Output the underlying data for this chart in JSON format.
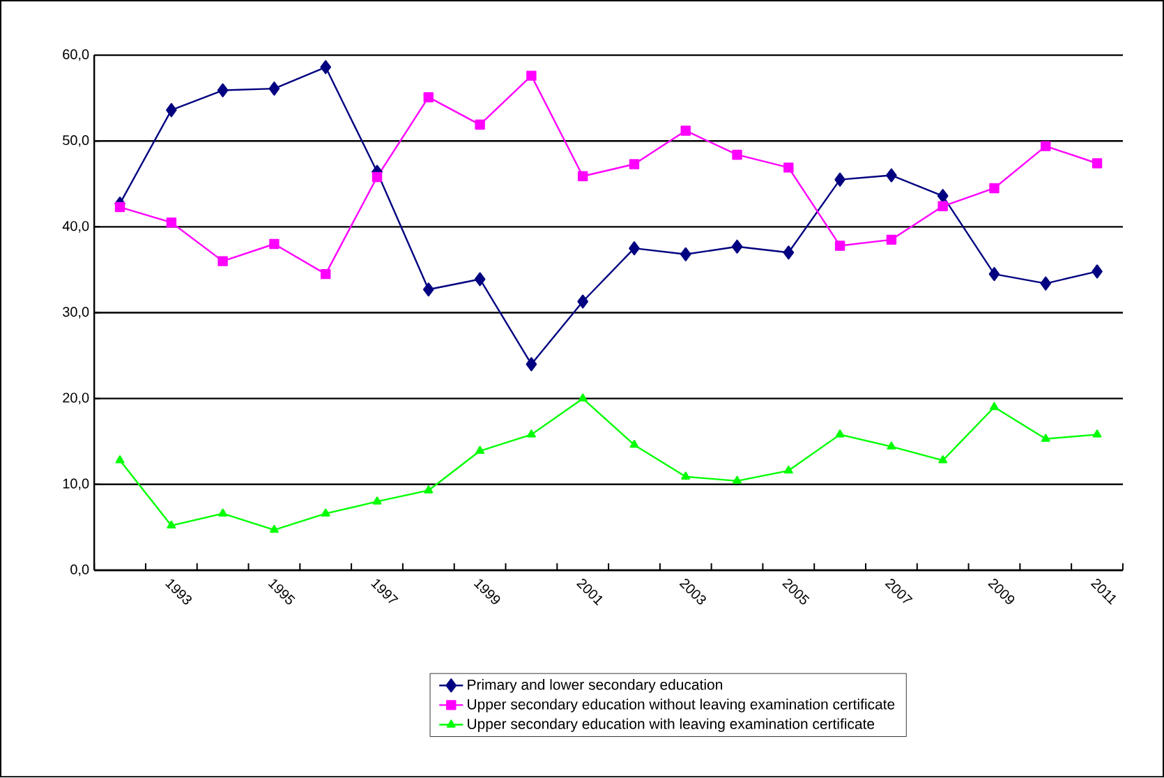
{
  "chart_data": {
    "type": "line",
    "categories": [
      null,
      "1993",
      null,
      "1995",
      null,
      "1997",
      null,
      "1999",
      null,
      "2001",
      null,
      "2003",
      null,
      "2005",
      null,
      "2007",
      null,
      "2009",
      null,
      "2011"
    ],
    "series": [
      {
        "name": "Primary and lower secondary education",
        "color": "#000080",
        "marker": "diamond",
        "values": [
          42.7,
          53.6,
          55.9,
          56.1,
          58.6,
          46.4,
          32.7,
          33.9,
          24.0,
          31.3,
          37.5,
          36.8,
          37.7,
          37.0,
          45.5,
          46.0,
          43.6,
          34.5,
          33.4,
          34.8
        ]
      },
      {
        "name": "Upper secondary education without leaving examination certificate",
        "color": "#ff00ff",
        "marker": "square",
        "values": [
          42.3,
          40.5,
          36.0,
          38.0,
          34.5,
          45.8,
          55.1,
          51.9,
          57.6,
          45.9,
          47.3,
          51.2,
          48.4,
          46.9,
          37.8,
          38.5,
          42.4,
          44.5,
          49.4,
          47.4
        ]
      },
      {
        "name": "Upper secondary education with leaving examination certificate",
        "color": "#00ff00",
        "marker": "triangle",
        "values": [
          12.8,
          5.2,
          6.6,
          4.7,
          6.6,
          8.0,
          9.3,
          13.9,
          15.8,
          20.0,
          14.6,
          10.9,
          10.4,
          11.6,
          15.8,
          14.4,
          12.8,
          19.0,
          15.3,
          15.8
        ]
      }
    ],
    "ylim": [
      0,
      60
    ],
    "yticks": [
      {
        "value": 0,
        "label": "0,0"
      },
      {
        "value": 10,
        "label": "10,0"
      },
      {
        "value": 20,
        "label": "20,0"
      },
      {
        "value": 30,
        "label": "30,0"
      },
      {
        "value": 40,
        "label": "40,0"
      },
      {
        "value": 50,
        "label": "50,0"
      },
      {
        "value": 60,
        "label": "60,0"
      }
    ],
    "grid": "y",
    "legend": "bottom",
    "line_style": "solid"
  }
}
